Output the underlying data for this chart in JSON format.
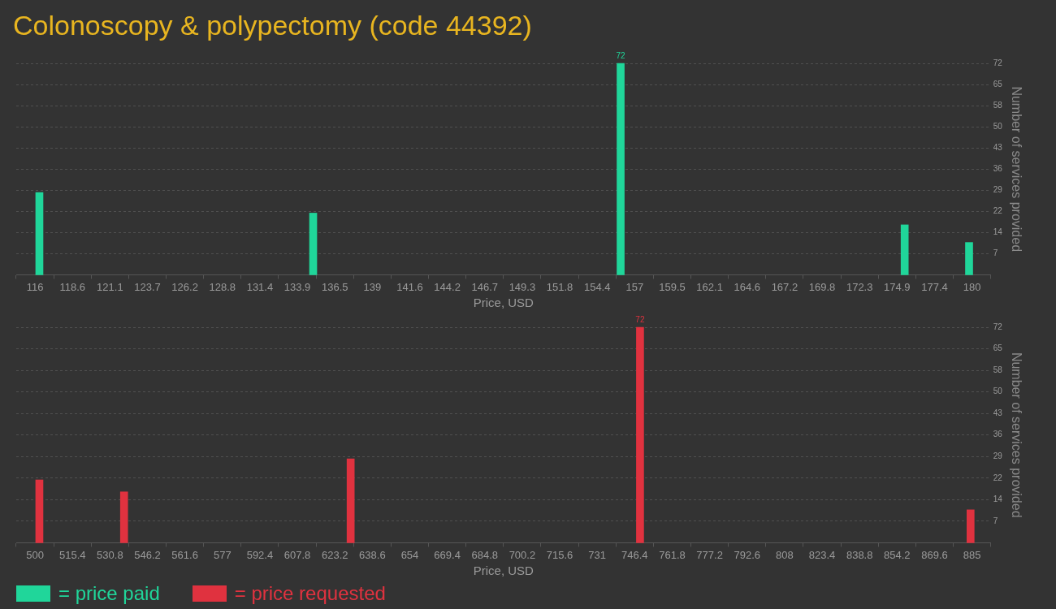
{
  "chart_data": [
    {
      "type": "bar",
      "title": "Colonoscopy & polypectomy (code 44392)",
      "xlabel": "Price, USD",
      "ylabel": "Number of services provided",
      "x": [
        116.3,
        135,
        156,
        175.4,
        179.8
      ],
      "series": [
        {
          "name": "= price paid",
          "color": "#20d69a",
          "values": [
            28,
            21,
            72,
            17,
            11
          ],
          "value_labels": [
            null,
            null,
            "72",
            null,
            null
          ]
        }
      ],
      "xlim": [
        116,
        180
      ],
      "xticks": [
        116,
        {
          "value": 118.56,
          "label": "118.6"
        },
        {
          "value": 121.12,
          "label": "121.1"
        },
        {
          "value": 123.68,
          "label": "123.7"
        },
        {
          "value": 126.24,
          "label": "126.2"
        },
        {
          "value": 128.8,
          "label": "128.8"
        },
        {
          "value": 131.36,
          "label": "131.4"
        },
        {
          "value": 133.92,
          "label": "133.9"
        },
        {
          "value": 136.48,
          "label": "136.5"
        },
        {
          "value": 139.04,
          "label": "139"
        },
        {
          "value": 141.6,
          "label": "141.6"
        },
        {
          "value": 144.16,
          "label": "144.2"
        },
        {
          "value": 146.72,
          "label": "146.7"
        },
        {
          "value": 149.28,
          "label": "149.3"
        },
        {
          "value": 151.84,
          "label": "151.8"
        },
        {
          "value": 154.4,
          "label": "154.4"
        },
        {
          "value": 156.96,
          "label": "157"
        },
        {
          "value": 159.52,
          "label": "159.5"
        },
        {
          "value": 162.08,
          "label": "162.1"
        },
        {
          "value": 164.64,
          "label": "164.6"
        },
        {
          "value": 167.2,
          "label": "167.2"
        },
        {
          "value": 169.76,
          "label": "169.8"
        },
        {
          "value": 172.32,
          "label": "172.3"
        },
        {
          "value": 174.88,
          "label": "174.9"
        },
        {
          "value": 177.44,
          "label": "177.4"
        },
        180
      ],
      "ylim": [
        0,
        72
      ],
      "yticks": [
        {
          "value": 7.2,
          "label": "7"
        },
        {
          "value": 14.4,
          "label": "14"
        },
        {
          "value": 21.6,
          "label": "22"
        },
        {
          "value": 28.8,
          "label": "29"
        },
        {
          "value": 36,
          "label": "36"
        },
        {
          "value": 43.2,
          "label": "43"
        },
        {
          "value": 50.4,
          "label": "50"
        },
        {
          "value": 57.6,
          "label": "58"
        },
        {
          "value": 64.8,
          "label": "65"
        },
        72
      ],
      "grid": "y",
      "legend": "bottom left"
    },
    {
      "type": "bar",
      "xlabel": "Price, USD",
      "ylabel": "Number of services provided",
      "x": [
        501.8,
        536.6,
        629.7,
        748.6,
        884.4
      ],
      "series": [
        {
          "name": "= price requested",
          "color": "#e0323f",
          "values": [
            21,
            17,
            28,
            72,
            11
          ],
          "value_labels": [
            null,
            null,
            null,
            "72",
            null
          ]
        }
      ],
      "xlim": [
        500,
        885
      ],
      "xticks": [
        500,
        515.4,
        530.8,
        546.2,
        561.6,
        577,
        592.4,
        607.8,
        623.2,
        638.6,
        654,
        669.4,
        684.8,
        700.2,
        715.6,
        731,
        746.4,
        761.8,
        777.2,
        792.6,
        808,
        823.4,
        838.8,
        854.2,
        869.6,
        885
      ],
      "ylim": [
        0,
        72
      ],
      "yticks": [
        {
          "value": 7.2,
          "label": "7"
        },
        {
          "value": 14.4,
          "label": "14"
        },
        {
          "value": 21.6,
          "label": "22"
        },
        {
          "value": 28.8,
          "label": "29"
        },
        {
          "value": 36,
          "label": "36"
        },
        {
          "value": 43.2,
          "label": "43"
        },
        {
          "value": 50.4,
          "label": "50"
        },
        {
          "value": 57.6,
          "label": "58"
        },
        {
          "value": 64.8,
          "label": "65"
        },
        72
      ],
      "grid": "y",
      "legend": "bottom left"
    }
  ]
}
